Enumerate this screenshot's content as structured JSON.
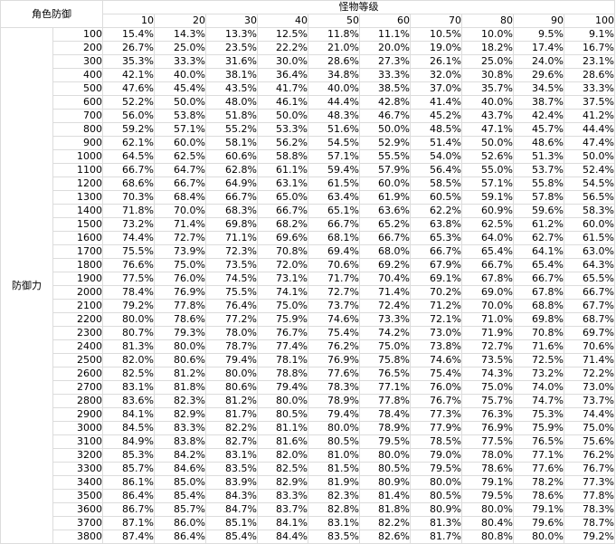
{
  "corner_label": "角色防御",
  "header_title": "怪物等级",
  "row_group_label": "防御力",
  "monster_levels": [
    "10",
    "20",
    "30",
    "40",
    "50",
    "60",
    "70",
    "80",
    "90",
    "100"
  ],
  "rows": [
    {
      "defense": "100",
      "values": [
        "15.4%",
        "14.3%",
        "13.3%",
        "12.5%",
        "11.8%",
        "11.1%",
        "10.5%",
        "10.0%",
        "9.5%",
        "9.1%"
      ]
    },
    {
      "defense": "200",
      "values": [
        "26.7%",
        "25.0%",
        "23.5%",
        "22.2%",
        "21.0%",
        "20.0%",
        "19.0%",
        "18.2%",
        "17.4%",
        "16.7%"
      ]
    },
    {
      "defense": "300",
      "values": [
        "35.3%",
        "33.3%",
        "31.6%",
        "30.0%",
        "28.6%",
        "27.3%",
        "26.1%",
        "25.0%",
        "24.0%",
        "23.1%"
      ]
    },
    {
      "defense": "400",
      "values": [
        "42.1%",
        "40.0%",
        "38.1%",
        "36.4%",
        "34.8%",
        "33.3%",
        "32.0%",
        "30.8%",
        "29.6%",
        "28.6%"
      ]
    },
    {
      "defense": "500",
      "values": [
        "47.6%",
        "45.4%",
        "43.5%",
        "41.7%",
        "40.0%",
        "38.5%",
        "37.0%",
        "35.7%",
        "34.5%",
        "33.3%"
      ]
    },
    {
      "defense": "600",
      "values": [
        "52.2%",
        "50.0%",
        "48.0%",
        "46.1%",
        "44.4%",
        "42.8%",
        "41.4%",
        "40.0%",
        "38.7%",
        "37.5%"
      ]
    },
    {
      "defense": "700",
      "values": [
        "56.0%",
        "53.8%",
        "51.8%",
        "50.0%",
        "48.3%",
        "46.7%",
        "45.2%",
        "43.7%",
        "42.4%",
        "41.2%"
      ]
    },
    {
      "defense": "800",
      "values": [
        "59.2%",
        "57.1%",
        "55.2%",
        "53.3%",
        "51.6%",
        "50.0%",
        "48.5%",
        "47.1%",
        "45.7%",
        "44.4%"
      ]
    },
    {
      "defense": "900",
      "values": [
        "62.1%",
        "60.0%",
        "58.1%",
        "56.2%",
        "54.5%",
        "52.9%",
        "51.4%",
        "50.0%",
        "48.6%",
        "47.4%"
      ]
    },
    {
      "defense": "1000",
      "values": [
        "64.5%",
        "62.5%",
        "60.6%",
        "58.8%",
        "57.1%",
        "55.5%",
        "54.0%",
        "52.6%",
        "51.3%",
        "50.0%"
      ]
    },
    {
      "defense": "1100",
      "values": [
        "66.7%",
        "64.7%",
        "62.8%",
        "61.1%",
        "59.4%",
        "57.9%",
        "56.4%",
        "55.0%",
        "53.7%",
        "52.4%"
      ]
    },
    {
      "defense": "1200",
      "values": [
        "68.6%",
        "66.7%",
        "64.9%",
        "63.1%",
        "61.5%",
        "60.0%",
        "58.5%",
        "57.1%",
        "55.8%",
        "54.5%"
      ]
    },
    {
      "defense": "1300",
      "values": [
        "70.3%",
        "68.4%",
        "66.7%",
        "65.0%",
        "63.4%",
        "61.9%",
        "60.5%",
        "59.1%",
        "57.8%",
        "56.5%"
      ]
    },
    {
      "defense": "1400",
      "values": [
        "71.8%",
        "70.0%",
        "68.3%",
        "66.7%",
        "65.1%",
        "63.6%",
        "62.2%",
        "60.9%",
        "59.6%",
        "58.3%"
      ]
    },
    {
      "defense": "1500",
      "values": [
        "73.2%",
        "71.4%",
        "69.8%",
        "68.2%",
        "66.7%",
        "65.2%",
        "63.8%",
        "62.5%",
        "61.2%",
        "60.0%"
      ]
    },
    {
      "defense": "1600",
      "values": [
        "74.4%",
        "72.7%",
        "71.1%",
        "69.6%",
        "68.1%",
        "66.7%",
        "65.3%",
        "64.0%",
        "62.7%",
        "61.5%"
      ]
    },
    {
      "defense": "1700",
      "values": [
        "75.5%",
        "73.9%",
        "72.3%",
        "70.8%",
        "69.4%",
        "68.0%",
        "66.7%",
        "65.4%",
        "64.1%",
        "63.0%"
      ]
    },
    {
      "defense": "1800",
      "values": [
        "76.6%",
        "75.0%",
        "73.5%",
        "72.0%",
        "70.6%",
        "69.2%",
        "67.9%",
        "66.7%",
        "65.4%",
        "64.3%"
      ]
    },
    {
      "defense": "1900",
      "values": [
        "77.5%",
        "76.0%",
        "74.5%",
        "73.1%",
        "71.7%",
        "70.4%",
        "69.1%",
        "67.8%",
        "66.7%",
        "65.5%"
      ]
    },
    {
      "defense": "2000",
      "values": [
        "78.4%",
        "76.9%",
        "75.5%",
        "74.1%",
        "72.7%",
        "71.4%",
        "70.2%",
        "69.0%",
        "67.8%",
        "66.7%"
      ]
    },
    {
      "defense": "2100",
      "values": [
        "79.2%",
        "77.8%",
        "76.4%",
        "75.0%",
        "73.7%",
        "72.4%",
        "71.2%",
        "70.0%",
        "68.8%",
        "67.7%"
      ]
    },
    {
      "defense": "2200",
      "values": [
        "80.0%",
        "78.6%",
        "77.2%",
        "75.9%",
        "74.6%",
        "73.3%",
        "72.1%",
        "71.0%",
        "69.8%",
        "68.7%"
      ]
    },
    {
      "defense": "2300",
      "values": [
        "80.7%",
        "79.3%",
        "78.0%",
        "76.7%",
        "75.4%",
        "74.2%",
        "73.0%",
        "71.9%",
        "70.8%",
        "69.7%"
      ]
    },
    {
      "defense": "2400",
      "values": [
        "81.3%",
        "80.0%",
        "78.7%",
        "77.4%",
        "76.2%",
        "75.0%",
        "73.8%",
        "72.7%",
        "71.6%",
        "70.6%"
      ]
    },
    {
      "defense": "2500",
      "values": [
        "82.0%",
        "80.6%",
        "79.4%",
        "78.1%",
        "76.9%",
        "75.8%",
        "74.6%",
        "73.5%",
        "72.5%",
        "71.4%"
      ]
    },
    {
      "defense": "2600",
      "values": [
        "82.5%",
        "81.2%",
        "80.0%",
        "78.8%",
        "77.6%",
        "76.5%",
        "75.4%",
        "74.3%",
        "73.2%",
        "72.2%"
      ]
    },
    {
      "defense": "2700",
      "values": [
        "83.1%",
        "81.8%",
        "80.6%",
        "79.4%",
        "78.3%",
        "77.1%",
        "76.0%",
        "75.0%",
        "74.0%",
        "73.0%"
      ]
    },
    {
      "defense": "2800",
      "values": [
        "83.6%",
        "82.3%",
        "81.2%",
        "80.0%",
        "78.9%",
        "77.8%",
        "76.7%",
        "75.7%",
        "74.7%",
        "73.7%"
      ]
    },
    {
      "defense": "2900",
      "values": [
        "84.1%",
        "82.9%",
        "81.7%",
        "80.5%",
        "79.4%",
        "78.4%",
        "77.3%",
        "76.3%",
        "75.3%",
        "74.4%"
      ]
    },
    {
      "defense": "3000",
      "values": [
        "84.5%",
        "83.3%",
        "82.2%",
        "81.1%",
        "80.0%",
        "78.9%",
        "77.9%",
        "76.9%",
        "75.9%",
        "75.0%"
      ]
    },
    {
      "defense": "3100",
      "values": [
        "84.9%",
        "83.8%",
        "82.7%",
        "81.6%",
        "80.5%",
        "79.5%",
        "78.5%",
        "77.5%",
        "76.5%",
        "75.6%"
      ]
    },
    {
      "defense": "3200",
      "values": [
        "85.3%",
        "84.2%",
        "83.1%",
        "82.0%",
        "81.0%",
        "80.0%",
        "79.0%",
        "78.0%",
        "77.1%",
        "76.2%"
      ]
    },
    {
      "defense": "3300",
      "values": [
        "85.7%",
        "84.6%",
        "83.5%",
        "82.5%",
        "81.5%",
        "80.5%",
        "79.5%",
        "78.6%",
        "77.6%",
        "76.7%"
      ]
    },
    {
      "defense": "3400",
      "values": [
        "86.1%",
        "85.0%",
        "83.9%",
        "82.9%",
        "81.9%",
        "80.9%",
        "80.0%",
        "79.1%",
        "78.2%",
        "77.3%"
      ]
    },
    {
      "defense": "3500",
      "values": [
        "86.4%",
        "85.4%",
        "84.3%",
        "83.3%",
        "82.3%",
        "81.4%",
        "80.5%",
        "79.5%",
        "78.6%",
        "77.8%"
      ]
    },
    {
      "defense": "3600",
      "values": [
        "86.7%",
        "85.7%",
        "84.7%",
        "83.7%",
        "82.8%",
        "81.8%",
        "80.9%",
        "80.0%",
        "79.1%",
        "78.3%"
      ]
    },
    {
      "defense": "3700",
      "values": [
        "87.1%",
        "86.0%",
        "85.1%",
        "84.1%",
        "83.1%",
        "82.2%",
        "81.3%",
        "80.4%",
        "79.6%",
        "78.7%"
      ]
    },
    {
      "defense": "3800",
      "values": [
        "87.4%",
        "86.4%",
        "85.4%",
        "84.4%",
        "83.5%",
        "82.6%",
        "81.7%",
        "80.8%",
        "80.0%",
        "79.2%"
      ]
    }
  ]
}
